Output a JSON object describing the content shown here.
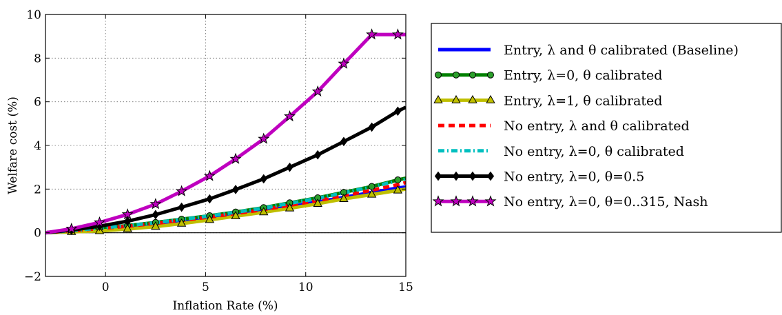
{
  "chart_data": {
    "type": "line",
    "title": "",
    "xlabel": "Inflation Rate (%)",
    "ylabel": "Welfare cost (%)",
    "xlim": [
      -3,
      15
    ],
    "ylim": [
      -2,
      10
    ],
    "xticks": [
      0,
      5,
      10,
      15
    ],
    "yticks": [
      -2,
      0,
      2,
      4,
      6,
      8,
      10
    ],
    "xtick_labels": [
      "0",
      "5",
      "10",
      "15"
    ],
    "ytick_labels": [
      "−2",
      "0",
      "2",
      "4",
      "6",
      "8",
      "10"
    ],
    "grid": true,
    "legend_position": "right-outside",
    "series": [
      {
        "name": "Entry, λ and θ calibrated (Baseline)",
        "color": "#0000ff",
        "style": "solid",
        "marker": "none",
        "x": [
          -3,
          -1.7,
          -0.3,
          1.1,
          2.5,
          3.8,
          5.2,
          6.5,
          7.9,
          9.2,
          10.6,
          11.9,
          13.3,
          14.6,
          15
        ],
        "y": [
          0,
          0.04,
          0.11,
          0.21,
          0.33,
          0.46,
          0.63,
          0.8,
          0.99,
          1.19,
          1.41,
          1.62,
          1.85,
          2.05,
          2.1
        ]
      },
      {
        "name": "Entry, λ=0, θ calibrated",
        "color": "#008000",
        "style": "solid",
        "marker": "circle",
        "marker_color": "#2ca02c",
        "x": [
          -3,
          -1.7,
          -0.3,
          1.1,
          2.5,
          3.8,
          5.2,
          6.5,
          7.9,
          9.2,
          10.6,
          11.9,
          13.3,
          14.6,
          15
        ],
        "y": [
          0,
          0.1,
          0.21,
          0.33,
          0.47,
          0.62,
          0.78,
          0.95,
          1.15,
          1.37,
          1.6,
          1.85,
          2.12,
          2.42,
          2.5
        ]
      },
      {
        "name": "Entry, λ=1, θ calibrated",
        "color": "#bfbf00",
        "style": "solid",
        "marker": "triangle",
        "marker_color": "#bfbf00",
        "x": [
          -3,
          -1.7,
          -0.3,
          1.1,
          2.5,
          3.8,
          5.2,
          6.5,
          7.9,
          9.2,
          10.6,
          11.9,
          13.3,
          14.6,
          15
        ],
        "y": [
          0,
          0.04,
          0.08,
          0.17,
          0.28,
          0.42,
          0.59,
          0.76,
          0.94,
          1.12,
          1.33,
          1.55,
          1.75,
          1.94,
          2.0
        ]
      },
      {
        "name": "No entry, λ and θ calibrated",
        "color": "#ff0000",
        "style": "dashed",
        "marker": "none",
        "x": [
          -3,
          -1.7,
          -0.3,
          1.1,
          2.5,
          3.8,
          5.2,
          6.5,
          7.9,
          9.2,
          10.6,
          11.9,
          13.3,
          14.6,
          15
        ],
        "y": [
          0,
          0.09,
          0.19,
          0.3,
          0.43,
          0.57,
          0.72,
          0.88,
          1.06,
          1.26,
          1.47,
          1.7,
          1.95,
          2.2,
          2.3
        ]
      },
      {
        "name": "No entry, λ=0, θ calibrated",
        "color": "#00bfbf",
        "style": "dashdot",
        "marker": "none",
        "x": [
          -3,
          -1.7,
          -0.3,
          1.1,
          2.5,
          3.8,
          5.2,
          6.5,
          7.9,
          9.2,
          10.6,
          11.9,
          13.3,
          14.6,
          15
        ],
        "y": [
          0,
          0.1,
          0.21,
          0.33,
          0.46,
          0.61,
          0.77,
          0.94,
          1.13,
          1.35,
          1.58,
          1.83,
          2.1,
          2.38,
          2.45
        ]
      },
      {
        "name": "No entry, λ=0, θ=0.5",
        "color": "#000000",
        "style": "solid",
        "marker": "diamond",
        "marker_color": "#000000",
        "x": [
          -3,
          -1.7,
          -0.3,
          1.1,
          2.5,
          3.8,
          5.2,
          6.5,
          7.9,
          9.2,
          10.6,
          11.9,
          13.3,
          14.6,
          15
        ],
        "y": [
          0,
          0.12,
          0.3,
          0.53,
          0.83,
          1.17,
          1.55,
          1.98,
          2.47,
          3.0,
          3.57,
          4.18,
          4.84,
          5.57,
          5.75
        ]
      },
      {
        "name": "No entry, λ=0, θ=0..315, Nash",
        "color": "#bf00bf",
        "style": "solid",
        "marker": "star",
        "marker_color": "#bf00bf",
        "x": [
          -3,
          -1.7,
          -0.3,
          1.1,
          2.5,
          3.8,
          5.2,
          6.5,
          7.9,
          9.2,
          10.6,
          11.9,
          13.3,
          14.6,
          15
        ],
        "y": [
          0,
          0.18,
          0.47,
          0.84,
          1.31,
          1.9,
          2.6,
          3.38,
          4.3,
          5.33,
          6.47,
          7.74,
          9.08,
          9.08,
          9.08
        ]
      }
    ]
  }
}
